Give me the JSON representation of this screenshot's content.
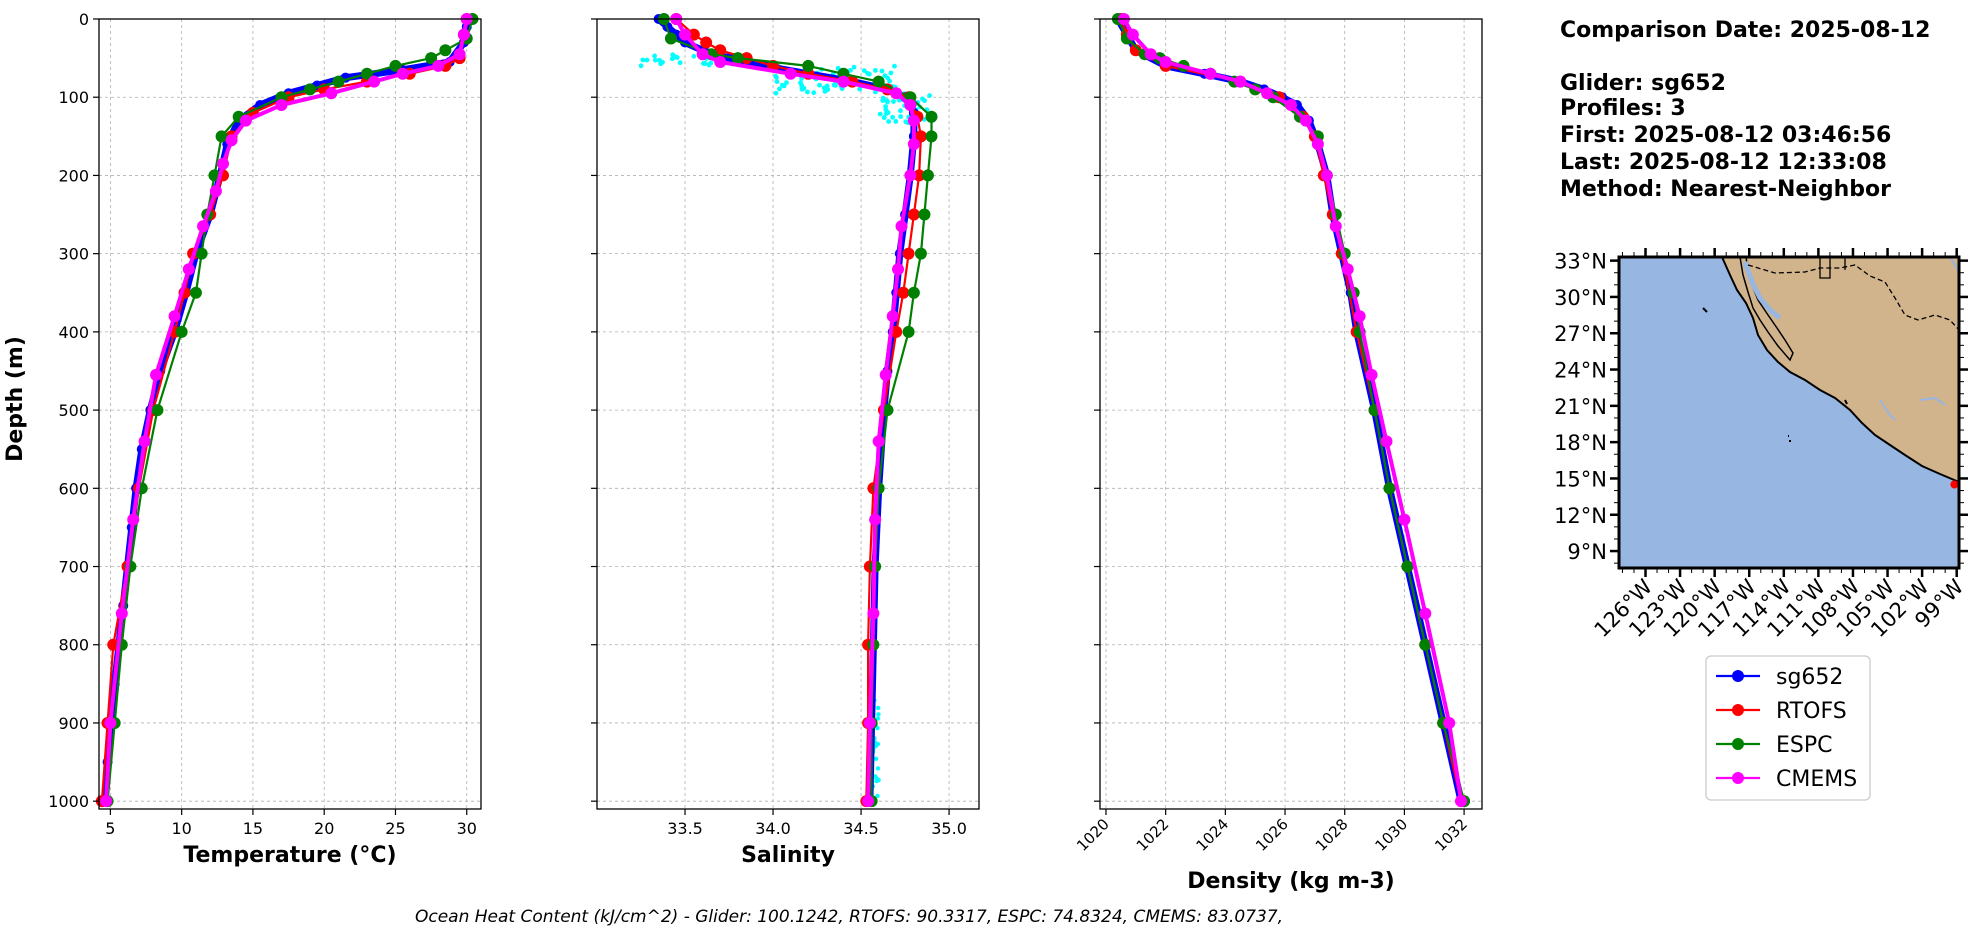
{
  "figure": {
    "info": {
      "comparison_date": "Comparison Date: 2025-08-12",
      "glider": "Glider: sg652",
      "profiles": "Profiles: 3",
      "first": "First: 2025-08-12 03:46:56",
      "last": "Last: 2025-08-12 12:33:08",
      "method": "Method: Nearest-Neighbor"
    },
    "footer": "Ocean Heat Content (kJ/cm^2) - Glider: 100.1242,  RTOFS: 90.3317,  ESPC: 74.8324,  CMEMS: 83.0737,",
    "colors": {
      "sg652": "#0000ff",
      "RTOFS": "#ff0000",
      "ESPC": "#008000",
      "CMEMS": "#ff00ff",
      "glider_raw": "#00ffff",
      "ocean": "#97b6e1",
      "land": "#d2b48c",
      "grid": "#b0b0b0"
    }
  },
  "chart_data": [
    {
      "type": "line",
      "xlabel": "Temperature (°C)",
      "ylabel": "Depth (m)",
      "xlim": [
        4.2,
        31
      ],
      "ylim": [
        1010,
        0
      ],
      "xticks": [
        5,
        10,
        15,
        20,
        25,
        30
      ],
      "yticks": [
        0,
        100,
        200,
        300,
        400,
        500,
        600,
        700,
        800,
        900,
        1000
      ],
      "grid": true,
      "series": [
        {
          "name": "sg652",
          "depth": [
            0,
            10,
            30,
            55,
            65,
            75,
            85,
            95,
            110,
            130,
            160,
            200,
            250,
            300,
            350,
            400,
            450,
            500,
            550,
            600,
            650,
            700,
            750,
            800,
            850,
            900,
            950,
            1000
          ],
          "values": [
            30.1,
            30.0,
            29.8,
            28.8,
            25.5,
            21.5,
            19.5,
            17.5,
            15.5,
            14.0,
            13.2,
            12.7,
            12.0,
            11.0,
            10.3,
            9.5,
            8.5,
            7.8,
            7.2,
            6.8,
            6.5,
            6.2,
            5.9,
            5.6,
            5.3,
            5.0,
            4.8,
            4.6
          ]
        },
        {
          "name": "RTOFS",
          "depth": [
            0,
            20,
            50,
            60,
            70,
            80,
            90,
            100,
            120,
            150,
            200,
            250,
            300,
            350,
            400,
            500,
            600,
            700,
            800,
            900,
            1000
          ],
          "values": [
            30.0,
            29.8,
            29.5,
            28.5,
            26.0,
            23.0,
            20.0,
            17.5,
            15.0,
            13.5,
            12.9,
            12.0,
            10.8,
            10.2,
            9.5,
            8.0,
            7.0,
            6.2,
            5.2,
            4.8,
            4.4
          ]
        },
        {
          "name": "ESPC",
          "depth": [
            0,
            25,
            40,
            50,
            60,
            70,
            80,
            90,
            100,
            125,
            150,
            200,
            250,
            300,
            350,
            400,
            500,
            600,
            700,
            800,
            900,
            1000
          ],
          "values": [
            30.4,
            30.0,
            28.5,
            27.5,
            25.0,
            23.0,
            21.0,
            19.0,
            17.0,
            14.0,
            12.8,
            12.3,
            11.8,
            11.4,
            11.0,
            10.0,
            8.3,
            7.2,
            6.4,
            5.8,
            5.3,
            4.8
          ]
        },
        {
          "name": "CMEMS",
          "depth": [
            0,
            20,
            45,
            60,
            70,
            80,
            95,
            110,
            130,
            155,
            185,
            220,
            265,
            320,
            380,
            455,
            540,
            640,
            760,
            900,
            1000
          ],
          "values": [
            30.0,
            29.8,
            29.5,
            28.0,
            25.5,
            23.5,
            20.5,
            17.0,
            14.5,
            13.5,
            12.9,
            12.4,
            11.5,
            10.5,
            9.5,
            8.2,
            7.4,
            6.6,
            5.8,
            5.0,
            4.7
          ]
        }
      ]
    },
    {
      "type": "line",
      "xlabel": "Salinity",
      "xlim": [
        33.0,
        35.17
      ],
      "ylim": [
        1010,
        0
      ],
      "xticks": [
        33.5,
        34.0,
        34.5,
        35.0
      ],
      "yticks": [
        0,
        100,
        200,
        300,
        400,
        500,
        600,
        700,
        800,
        900,
        1000
      ],
      "grid": true,
      "series": [
        {
          "name": "sg652",
          "depth": [
            0,
            10,
            20,
            30,
            40,
            50,
            60,
            70,
            80,
            90,
            100,
            120,
            150,
            200,
            250,
            300,
            350,
            400,
            450,
            500,
            600,
            700,
            800,
            900,
            1000
          ],
          "values": [
            33.35,
            33.4,
            33.45,
            33.5,
            33.6,
            33.75,
            33.95,
            34.2,
            34.45,
            34.65,
            34.75,
            34.8,
            34.8,
            34.78,
            34.75,
            34.72,
            34.7,
            34.68,
            34.65,
            34.63,
            34.6,
            34.58,
            34.57,
            34.56,
            34.55
          ]
        },
        {
          "name": "RTOFS",
          "depth": [
            0,
            20,
            30,
            40,
            50,
            60,
            70,
            80,
            90,
            100,
            125,
            150,
            200,
            250,
            300,
            350,
            400,
            500,
            600,
            700,
            800,
            900,
            1000
          ],
          "values": [
            33.45,
            33.55,
            33.62,
            33.7,
            33.85,
            34.0,
            34.2,
            34.45,
            34.65,
            34.77,
            34.82,
            34.84,
            34.83,
            34.8,
            34.77,
            34.74,
            34.7,
            34.63,
            34.57,
            34.55,
            34.54,
            34.54,
            34.53
          ]
        },
        {
          "name": "ESPC",
          "depth": [
            0,
            25,
            45,
            50,
            60,
            70,
            80,
            100,
            125,
            150,
            200,
            250,
            300,
            350,
            400,
            500,
            600,
            700,
            800,
            900,
            1000
          ],
          "values": [
            33.38,
            33.42,
            33.65,
            33.8,
            34.2,
            34.4,
            34.6,
            34.78,
            34.9,
            34.9,
            34.88,
            34.86,
            34.84,
            34.8,
            34.77,
            34.65,
            34.6,
            34.58,
            34.57,
            34.56,
            34.56
          ]
        },
        {
          "name": "CMEMS",
          "depth": [
            0,
            20,
            45,
            55,
            70,
            80,
            95,
            110,
            130,
            160,
            200,
            265,
            320,
            380,
            455,
            540,
            640,
            760,
            900,
            1000
          ],
          "values": [
            33.45,
            33.5,
            33.6,
            33.7,
            34.1,
            34.4,
            34.7,
            34.78,
            34.8,
            34.8,
            34.78,
            34.73,
            34.71,
            34.68,
            34.64,
            34.6,
            34.58,
            34.57,
            34.55,
            34.54
          ]
        }
      ]
    },
    {
      "type": "line",
      "xlabel": "Density (kg m-3)",
      "xlim": [
        1019.8,
        1032.6
      ],
      "ylim": [
        1010,
        0
      ],
      "xticks": [
        1020,
        1022,
        1024,
        1026,
        1028,
        1030,
        1032
      ],
      "yticks": [
        0,
        100,
        200,
        300,
        400,
        500,
        600,
        700,
        800,
        900,
        1000
      ],
      "grid": true,
      "series": [
        {
          "name": "sg652",
          "depth": [
            0,
            20,
            40,
            60,
            70,
            80,
            90,
            100,
            110,
            130,
            160,
            200,
            250,
            300,
            350,
            400,
            500,
            600,
            700,
            800,
            900,
            1000
          ],
          "values": [
            1020.4,
            1020.7,
            1021.0,
            1022.0,
            1023.3,
            1024.5,
            1025.3,
            1025.9,
            1026.4,
            1026.8,
            1027.1,
            1027.4,
            1027.6,
            1027.9,
            1028.2,
            1028.4,
            1029.0,
            1029.5,
            1030.1,
            1030.7,
            1031.3,
            1031.9
          ]
        },
        {
          "name": "RTOFS",
          "depth": [
            0,
            20,
            40,
            60,
            80,
            100,
            125,
            150,
            200,
            250,
            300,
            400,
            500,
            600,
            700,
            800,
            900,
            1000
          ],
          "values": [
            1020.5,
            1020.7,
            1021.0,
            1022.0,
            1024.5,
            1025.8,
            1026.6,
            1027.0,
            1027.3,
            1027.6,
            1027.9,
            1028.4,
            1029.0,
            1029.5,
            1030.1,
            1030.7,
            1031.3,
            1031.9
          ]
        },
        {
          "name": "ESPC",
          "depth": [
            0,
            25,
            45,
            50,
            60,
            70,
            80,
            90,
            100,
            125,
            150,
            200,
            250,
            300,
            350,
            400,
            500,
            600,
            700,
            800,
            900,
            1000
          ],
          "values": [
            1020.4,
            1020.7,
            1021.3,
            1021.8,
            1022.6,
            1023.5,
            1024.3,
            1025.0,
            1025.6,
            1026.5,
            1027.1,
            1027.4,
            1027.7,
            1028.0,
            1028.3,
            1028.5,
            1029.0,
            1029.5,
            1030.1,
            1030.7,
            1031.3,
            1032.0
          ]
        },
        {
          "name": "CMEMS",
          "depth": [
            0,
            20,
            45,
            55,
            70,
            80,
            95,
            110,
            130,
            160,
            200,
            265,
            320,
            380,
            455,
            540,
            640,
            760,
            900,
            1000
          ],
          "values": [
            1020.6,
            1020.9,
            1021.5,
            1022.0,
            1023.5,
            1024.5,
            1025.4,
            1026.2,
            1026.7,
            1027.1,
            1027.4,
            1027.7,
            1028.1,
            1028.5,
            1028.9,
            1029.4,
            1030.0,
            1030.7,
            1031.5,
            1031.9
          ]
        }
      ]
    }
  ],
  "map": {
    "lat_labels": [
      "33°N",
      "30°N",
      "27°N",
      "24°N",
      "21°N",
      "18°N",
      "15°N",
      "12°N",
      "9°N"
    ],
    "lon_labels": [
      "126°W",
      "123°W",
      "120°W",
      "117°W",
      "114°W",
      "111°W",
      "108°W",
      "105°W",
      "102°W",
      "99°W"
    ],
    "marker_lat": 14.5,
    "marker_lon": -99.2
  },
  "legend": {
    "items": [
      {
        "label": "sg652",
        "color": "#0000ff"
      },
      {
        "label": "RTOFS",
        "color": "#ff0000"
      },
      {
        "label": "ESPC",
        "color": "#008000"
      },
      {
        "label": "CMEMS",
        "color": "#ff00ff"
      }
    ]
  }
}
